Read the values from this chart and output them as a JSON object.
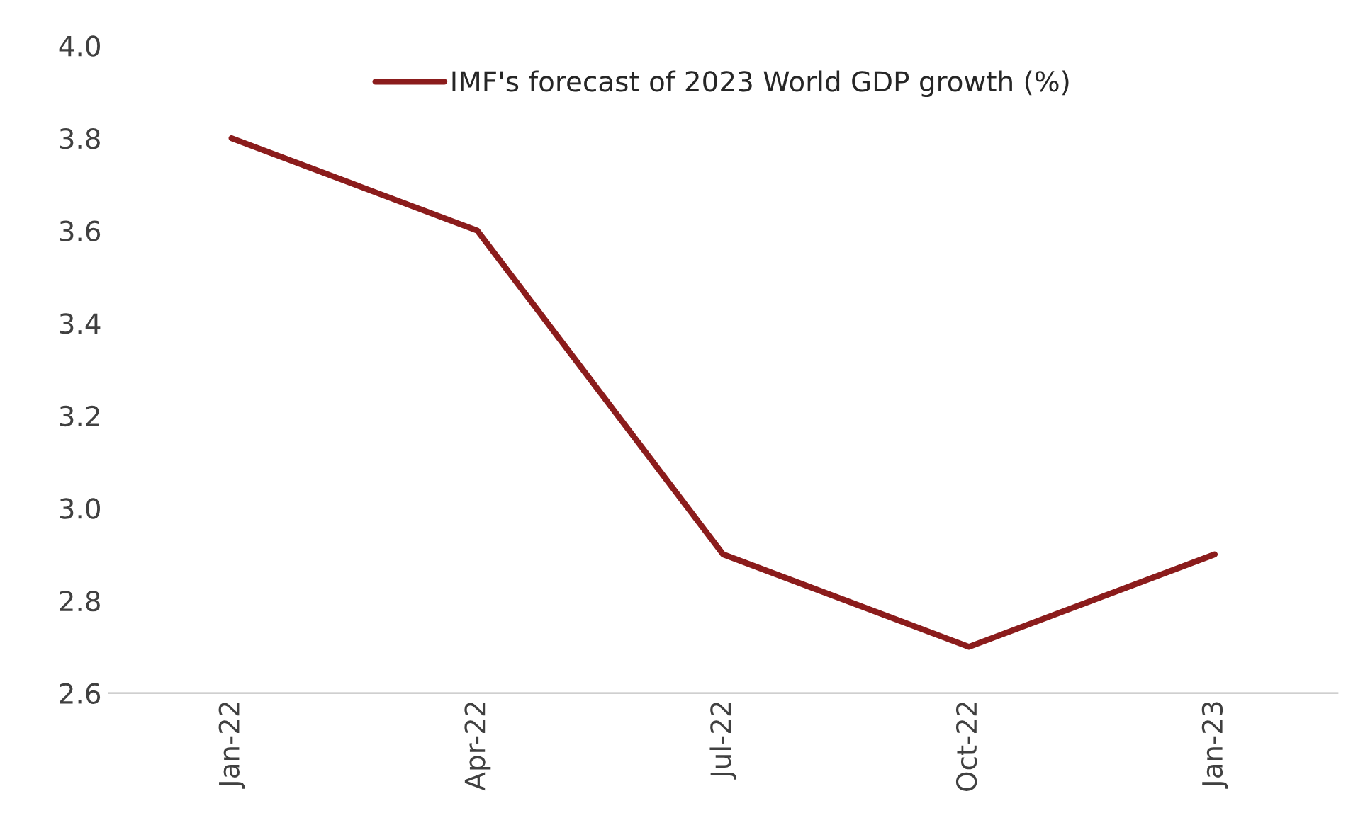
{
  "chart_data": {
    "type": "line",
    "categories": [
      "Jan-22",
      "Apr-22",
      "Jul-22",
      "Oct-22",
      "Jan-23"
    ],
    "series": [
      {
        "name": "IMF's forecast of 2023 World GDP growth (%)",
        "color": "#8b1c1c",
        "values": [
          3.8,
          3.6,
          2.9,
          2.7,
          2.9
        ]
      }
    ],
    "ylim": [
      2.6,
      4.0
    ],
    "yticks": [
      2.6,
      2.8,
      {
        "value": 3,
        "label": "3.0"
      },
      3.2,
      3.4,
      3.6,
      3.8,
      {
        "value": 4,
        "label": "4.0"
      }
    ],
    "grid": false,
    "legend": "top",
    "marker": "none",
    "line_style": "solid"
  }
}
